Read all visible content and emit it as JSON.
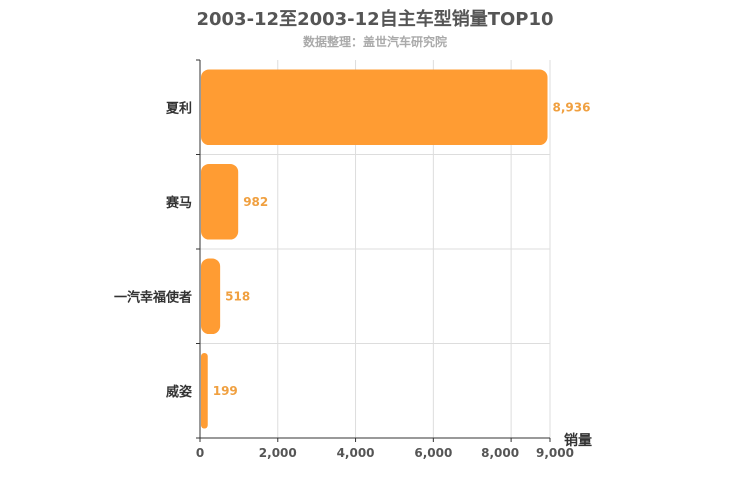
{
  "chart_data": {
    "type": "bar",
    "orientation": "horizontal",
    "title": "2003-12至2003-12自主车型销量TOP10",
    "subtitle": "数据整理：盖世汽车研究院",
    "categories": [
      "夏利",
      "赛马",
      "一汽幸福使者",
      "威姿"
    ],
    "values": [
      8936,
      982,
      518,
      199
    ],
    "value_labels": [
      "8,936",
      "982",
      "518",
      "199"
    ],
    "xlabel": "销量",
    "ylabel": "",
    "xlim": [
      0,
      9000
    ],
    "x_ticks": [
      0,
      2000,
      4000,
      6000,
      8000,
      9000
    ],
    "x_tick_labels": [
      "0",
      "2,000",
      "4,000",
      "6,000",
      "8,000",
      "9,000"
    ],
    "grid": true,
    "bar_color": "#ff9c33",
    "label_color": "#f0a040"
  }
}
